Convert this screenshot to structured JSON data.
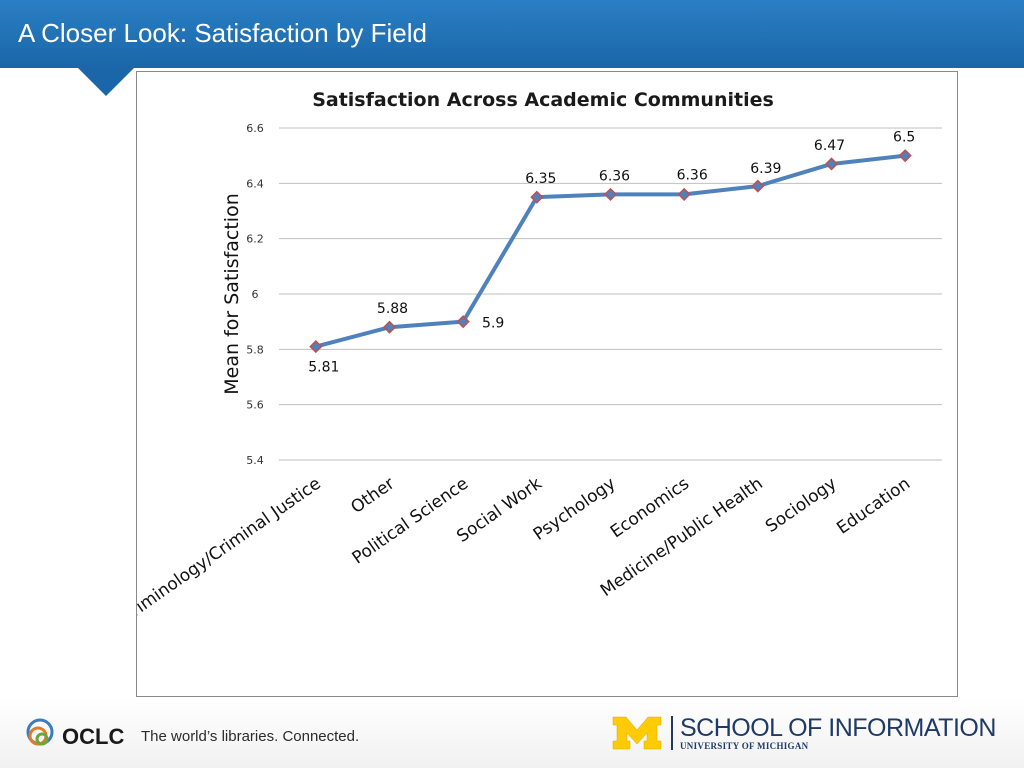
{
  "header": {
    "title": "A Closer Look: Satisfaction by Field"
  },
  "chart_data": {
    "type": "line",
    "title": "Satisfaction Across Academic Communities",
    "ylabel": "Mean for Satisfaction",
    "xlabel": "",
    "categories": [
      "Criminology/Criminal Justice",
      "Other",
      "Political Science",
      "Social Work",
      "Psychology",
      "Economics",
      "Medicine/Public Health",
      "Sociology",
      "Education"
    ],
    "values": [
      5.81,
      5.88,
      5.9,
      6.35,
      6.36,
      6.36,
      6.39,
      6.47,
      6.5
    ],
    "data_labels": [
      "5.81",
      "5.88",
      "5.9",
      "6.35",
      "6.36",
      "6.36",
      "6.39",
      "6.47",
      "6.5"
    ],
    "ylim": [
      5.4,
      6.6
    ],
    "yticks": [
      "5.4",
      "5.6",
      "5.8",
      "6",
      "6.2",
      "6.4",
      "6.6"
    ],
    "grid": true,
    "legend": "none",
    "line_color": "#4f81bd",
    "marker_color": "#4f81bd",
    "marker_edge_color": "#c0504d"
  },
  "footer": {
    "oclc_logo_text": "OCLC",
    "oclc_tagline": "The world’s libraries. Connected.",
    "school_name": "SCHOOL OF INFORMATION",
    "university": "UNIVERSITY OF MICHIGAN",
    "um_logo_icon": "block-m-icon",
    "um_color": "#ffcb05"
  }
}
